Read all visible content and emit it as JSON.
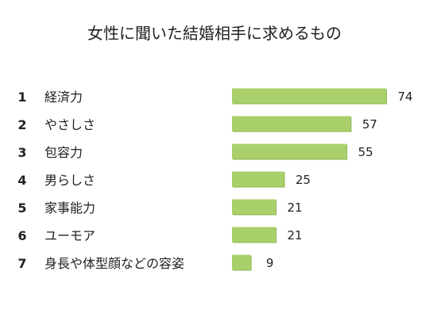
{
  "chart_data": {
    "type": "bar",
    "orientation": "horizontal",
    "title": "女性に聞いた結婚相手に求めるもの",
    "ranks": [
      "1",
      "2",
      "3",
      "4",
      "5",
      "6",
      "7"
    ],
    "categories": [
      "経済力",
      "やさしさ",
      "包容力",
      "男らしさ",
      "家事能力",
      "ユーモア",
      "身長や体型顔などの容姿"
    ],
    "values": [
      74,
      57,
      55,
      25,
      21,
      21,
      9
    ],
    "xlim": [
      0,
      74
    ],
    "grid": false,
    "legend": "none",
    "colors": {
      "bar_fill": "#a9d06a",
      "bar_shadow": "#8db552",
      "text": "#222222"
    }
  }
}
